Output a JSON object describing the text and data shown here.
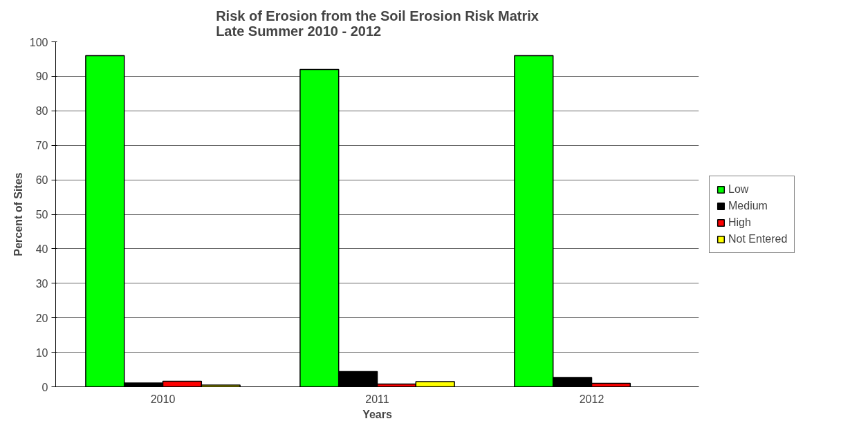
{
  "chart_data": {
    "type": "bar",
    "title": "Risk of Erosion from the Soil Erosion Risk Matrix\nLate Summer 2010 - 2012",
    "xlabel": "Years",
    "ylabel": "Percent of Sites",
    "categories": [
      "2010",
      "2011",
      "2012"
    ],
    "series": [
      {
        "name": "Low",
        "color": "#00ff00",
        "values": [
          96,
          92,
          96
        ]
      },
      {
        "name": "Medium",
        "color": "#000000",
        "values": [
          1.1,
          4.4,
          2.7
        ]
      },
      {
        "name": "High",
        "color": "#ff0000",
        "values": [
          1.6,
          0.8,
          1.0
        ]
      },
      {
        "name": "Not Entered",
        "color": "#ffff00",
        "values": [
          0.5,
          1.5,
          null
        ]
      }
    ],
    "ylim": [
      0,
      100
    ],
    "yticks": [
      0,
      10,
      20,
      30,
      40,
      50,
      60,
      70,
      80,
      90,
      100
    ],
    "grid": "y",
    "legend": "right"
  }
}
